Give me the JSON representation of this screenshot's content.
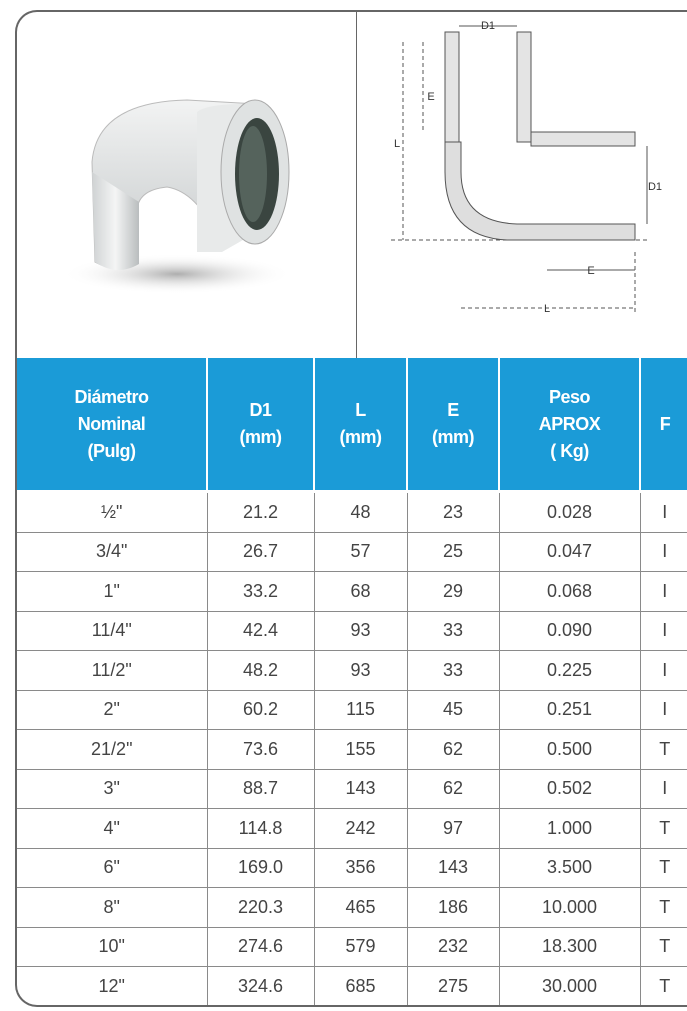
{
  "diagram": {
    "labels": [
      "D1",
      "E",
      "L",
      "D1",
      "E",
      "L"
    ]
  },
  "table": {
    "headers": [
      [
        "Diámetro",
        "Nominal",
        "(Pulg)"
      ],
      [
        "D1",
        "(mm)"
      ],
      [
        "L",
        "(mm)"
      ],
      [
        "E",
        "(mm)"
      ],
      [
        "Peso",
        "APROX",
        "( Kg)"
      ],
      [
        "F"
      ]
    ],
    "rows": [
      [
        "½\"",
        "21.2",
        "48",
        "23",
        "0.028",
        "I"
      ],
      [
        "3/4\"",
        "26.7",
        "57",
        "25",
        "0.047",
        "I"
      ],
      [
        "1\"",
        "33.2",
        "68",
        "29",
        "0.068",
        "I"
      ],
      [
        "11/4\"",
        "42.4",
        "93",
        "33",
        "0.090",
        "I"
      ],
      [
        "11/2\"",
        "48.2",
        "93",
        "33",
        "0.225",
        "I"
      ],
      [
        "2\"",
        "60.2",
        "115",
        "45",
        "0.251",
        "I"
      ],
      [
        "21/2\"",
        "73.6",
        "155",
        "62",
        "0.500",
        "T"
      ],
      [
        "3\"",
        "88.7",
        "143",
        "62",
        "0.502",
        "I"
      ],
      [
        "4\"",
        "114.8",
        "242",
        "97",
        "1.000",
        "T"
      ],
      [
        "6\"",
        "169.0",
        "356",
        "143",
        "3.500",
        "T"
      ],
      [
        "8\"",
        "220.3",
        "465",
        "186",
        "10.000",
        "T"
      ],
      [
        "10\"",
        "274.6",
        "579",
        "232",
        "18.300",
        "T"
      ],
      [
        "12\"",
        "324.6",
        "685",
        "275",
        "30.000",
        "T"
      ]
    ]
  }
}
